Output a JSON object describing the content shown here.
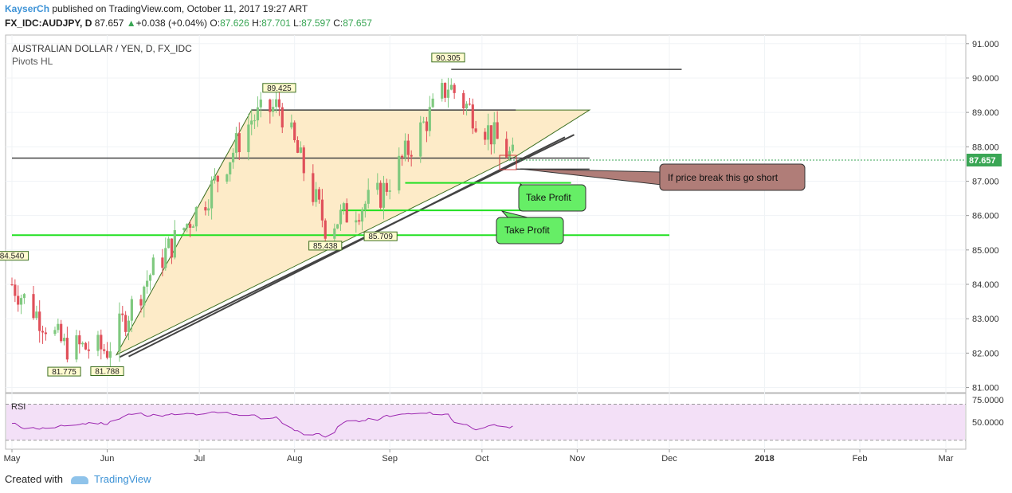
{
  "header": {
    "author": "KayserCh",
    "published_text": "published on TradingView.com, October 11, 2017 19:27 ART",
    "symbol": "FX_IDC:AUDJPY, D",
    "last": "87.657",
    "change": "+0.038 (+0.04%)",
    "open_label": "O:",
    "open": "87.626",
    "high_label": "H:",
    "high": "87.701",
    "low_label": "L:",
    "low": "87.597",
    "close_label": "C:",
    "close": "87.657"
  },
  "chart_labels": {
    "title": "AUSTRALIAN DOLLAR / YEN, D, FX_IDC",
    "indicator": "Pivots HL",
    "rsi_label": "RSI",
    "current_price": "87.657"
  },
  "pivots": [
    {
      "label": "84.540",
      "date": "2017-05-01",
      "price": 84.54,
      "type": "high"
    },
    {
      "label": "81.775",
      "date": "2017-05-18",
      "price": 81.775,
      "type": "low"
    },
    {
      "label": "81.788",
      "date": "2017-06-01",
      "price": 81.788,
      "type": "low"
    },
    {
      "label": "89.425",
      "date": "2017-07-27",
      "price": 89.425,
      "type": "high"
    },
    {
      "label": "85.438",
      "date": "2017-08-11",
      "price": 85.438,
      "type": "low"
    },
    {
      "label": "85.709",
      "date": "2017-08-29",
      "price": 85.709,
      "type": "low"
    },
    {
      "label": "90.305",
      "date": "2017-09-20",
      "price": 90.305,
      "type": "high"
    }
  ],
  "annotations": {
    "callout_short": "If price break this go short",
    "take_profit_1": "Take Profit",
    "take_profit_2": "Take Profit"
  },
  "footer": {
    "created_with": "Created with",
    "brand": "TradingView"
  },
  "colors": {
    "up_candle": "#7fc97f",
    "down_candle": "#e0505a",
    "wedge_fill": "#fdebc8",
    "green_line": "#22e022",
    "rsi_line": "#9c27b0",
    "rsi_band": "#f3e0f7",
    "callout_fill": "#b07d78",
    "takeprofit_fill": "#66ee66",
    "accent": "#3c92d6"
  },
  "chart_data": {
    "type": "candlestick",
    "title": "AUSTRALIAN DOLLAR / YEN, D, FX_IDC",
    "x_axis": {
      "tick_labels": [
        "May",
        "Jun",
        "Jul",
        "Aug",
        "Sep",
        "Oct",
        "Nov",
        "Dec",
        "2018",
        "Feb",
        "Mar"
      ],
      "range": [
        "2017-05-01",
        "2018-03-01"
      ]
    },
    "y_axis": {
      "tick_labels": [
        "91.000",
        "90.000",
        "89.000",
        "88.000",
        "87.000",
        "86.000",
        "85.000",
        "84.000",
        "83.000",
        "82.000",
        "81.000"
      ],
      "range": [
        80.85,
        91.25
      ],
      "position": "right"
    },
    "approx_closes": [
      {
        "date": "2017-05-01",
        "price": 84.0
      },
      {
        "date": "2017-05-18",
        "price": 82.2
      },
      {
        "date": "2017-06-01",
        "price": 82.1
      },
      {
        "date": "2017-06-15",
        "price": 84.3
      },
      {
        "date": "2017-07-03",
        "price": 86.5
      },
      {
        "date": "2017-07-18",
        "price": 88.8
      },
      {
        "date": "2017-07-27",
        "price": 89.2
      },
      {
        "date": "2017-08-11",
        "price": 85.7
      },
      {
        "date": "2017-08-29",
        "price": 86.6
      },
      {
        "date": "2017-09-20",
        "price": 89.8
      },
      {
        "date": "2017-10-11",
        "price": 87.657
      }
    ],
    "lines": {
      "horizontal": [
        {
          "price": 90.25,
          "from": "2017-09-21",
          "to": "2017-12-05"
        },
        {
          "price": 89.07,
          "from": "2017-07-18",
          "to": "2017-10-12"
        },
        {
          "price": 87.67,
          "from": "2017-05-01",
          "to": "2017-11-05"
        },
        {
          "price": 87.35,
          "from": "2017-10-12",
          "to": "2017-11-05"
        }
      ],
      "green_horizontal": [
        {
          "price": 86.95,
          "from": "2017-09-06",
          "to": "2017-10-30"
        },
        {
          "price": 86.15,
          "from": "2017-08-16",
          "to": "2017-10-15"
        },
        {
          "price": 85.43,
          "from": "2017-05-01",
          "to": "2017-12-01"
        }
      ]
    },
    "rsi": {
      "label": "RSI",
      "tick_labels": [
        "75.0000",
        "50.0000"
      ],
      "range": [
        20,
        82
      ],
      "band": [
        30,
        70
      ]
    }
  }
}
